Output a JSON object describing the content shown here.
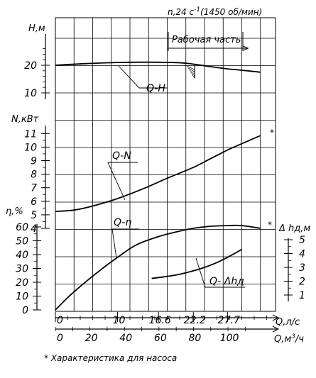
{
  "header": {
    "speed": "n,24 c",
    "speed_exp": "-1",
    "speed_rpm": "(1450 об/мин)"
  },
  "footnote": "* Характеристика для насоса",
  "chart_data": {
    "type": "line",
    "axes": {
      "H": {
        "label": "H,м",
        "ticks": [
          10,
          20
        ]
      },
      "N": {
        "label": "N,кВт",
        "ticks": [
          4,
          5,
          6,
          7,
          8,
          9,
          10,
          11
        ]
      },
      "eta": {
        "label": "η,%",
        "ticks": [
          0,
          10,
          20,
          30,
          40,
          50,
          60
        ]
      },
      "dh": {
        "label": "Δ hд,м",
        "ticks": [
          1,
          2,
          3,
          4,
          5
        ]
      },
      "Q": {
        "label": "Q,л/с",
        "ticks": [
          0,
          10,
          16.6,
          22.2,
          27.7
        ],
        "range": [
          0,
          34
        ]
      },
      "Qm3": {
        "label": "Q,м³/ч",
        "ticks": [
          0,
          20,
          40,
          60,
          80,
          100
        ]
      }
    },
    "series": [
      {
        "name": "Q-H",
        "axis": "H",
        "x": [
          0,
          5,
          10,
          15,
          20,
          22.2,
          25,
          27.7,
          30,
          33
        ],
        "y": [
          20.0,
          20.6,
          21.0,
          21.1,
          20.9,
          20.4,
          19.5,
          18.7,
          18.2,
          17.5
        ]
      },
      {
        "name": "Q-N",
        "axis": "N",
        "x": [
          0,
          3,
          6,
          10,
          14,
          18,
          22.2,
          25,
          28,
          31,
          33
        ],
        "y": [
          5.25,
          5.35,
          5.65,
          6.2,
          6.9,
          7.7,
          8.5,
          9.15,
          9.85,
          10.45,
          10.85
        ]
      },
      {
        "name": "Q-η",
        "axis": "eta",
        "x": [
          0,
          2,
          4,
          7,
          10,
          13,
          16.6,
          20,
          22.2,
          25,
          27.7,
          30,
          33
        ],
        "y": [
          0,
          9,
          17,
          28,
          38,
          47,
          53,
          57,
          59,
          60.5,
          61,
          61,
          59
        ]
      },
      {
        "name": "Q- Δhд",
        "axis": "dh",
        "x": [
          15.5,
          18,
          20,
          22.2,
          24,
          26,
          28,
          30
        ],
        "y": [
          2.2,
          2.35,
          2.5,
          2.75,
          3.0,
          3.35,
          3.8,
          4.3
        ]
      }
    ],
    "annotations": {
      "working_range": "Рабочая часть",
      "working_range_q": [
        16.6,
        31
      ],
      "asterisk": "*"
    },
    "grid": true
  }
}
